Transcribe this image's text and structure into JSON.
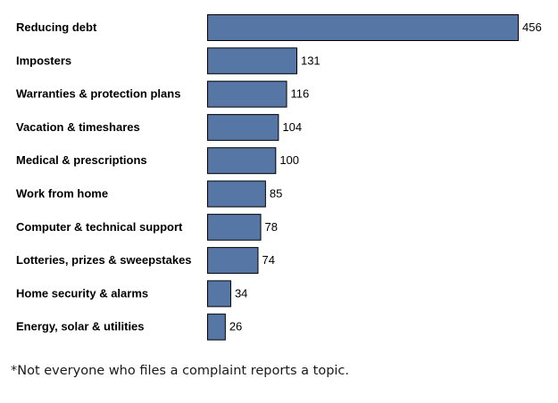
{
  "chart_data": {
    "type": "bar",
    "orientation": "horizontal",
    "categories": [
      "Reducing debt",
      "Imposters",
      "Warranties & protection plans",
      "Vacation & timeshares",
      "Medical & prescriptions",
      "Work from home",
      "Computer & technical support",
      "Lotteries, prizes & sweepstakes",
      "Home security & alarms",
      "Energy, solar & utilities"
    ],
    "values": [
      456,
      131,
      116,
      104,
      100,
      85,
      78,
      74,
      34,
      26
    ],
    "data_labels": [
      "456",
      "131",
      "116",
      "104",
      "100",
      "85",
      "78",
      "74",
      "34",
      "26"
    ],
    "title": "",
    "xlabel": "",
    "ylabel": "",
    "xlim": [
      0,
      456
    ],
    "grid": false,
    "legend": "none",
    "bar_color": "#5677a5",
    "bar_border_color": "#000000"
  },
  "footnote": "*Not everyone who files a complaint reports a topic."
}
